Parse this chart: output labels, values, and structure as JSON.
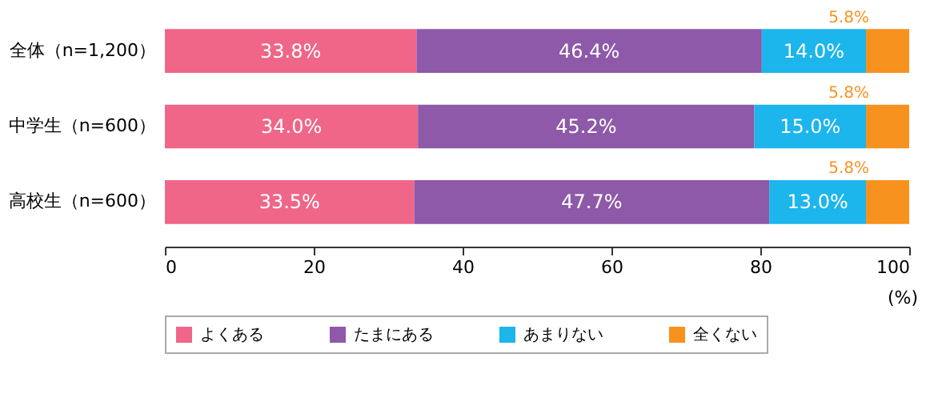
{
  "chart_data": {
    "type": "bar",
    "orientation": "horizontal",
    "stacked": true,
    "categories": [
      "全体（n=1,200）",
      "中学生（n=600）",
      "高校生（n=600）"
    ],
    "series": [
      {
        "name": "よくある",
        "color": "#ef6688",
        "values": [
          33.8,
          34.0,
          33.5
        ],
        "value_labels": [
          "33.8%",
          "34.0%",
          "33.5%"
        ]
      },
      {
        "name": "たまにある",
        "color": "#8e59a8",
        "values": [
          46.4,
          45.2,
          47.7
        ],
        "value_labels": [
          "46.4%",
          "45.2%",
          "47.7%"
        ]
      },
      {
        "name": "あまりない",
        "color": "#1cb5ec",
        "values": [
          14.0,
          15.0,
          13.0
        ],
        "value_labels": [
          "14.0%",
          "15.0%",
          "13.0%"
        ]
      },
      {
        "name": "全くない",
        "color": "#f7921e",
        "values": [
          5.8,
          5.8,
          5.8
        ],
        "value_labels": [
          "5.8%",
          "5.8%",
          "5.8%"
        ]
      }
    ],
    "xlim": [
      0,
      100
    ],
    "xticks": [
      0,
      20,
      40,
      60,
      80,
      100
    ],
    "xlabel": "(%)",
    "grid": false,
    "legend": "bottom"
  }
}
